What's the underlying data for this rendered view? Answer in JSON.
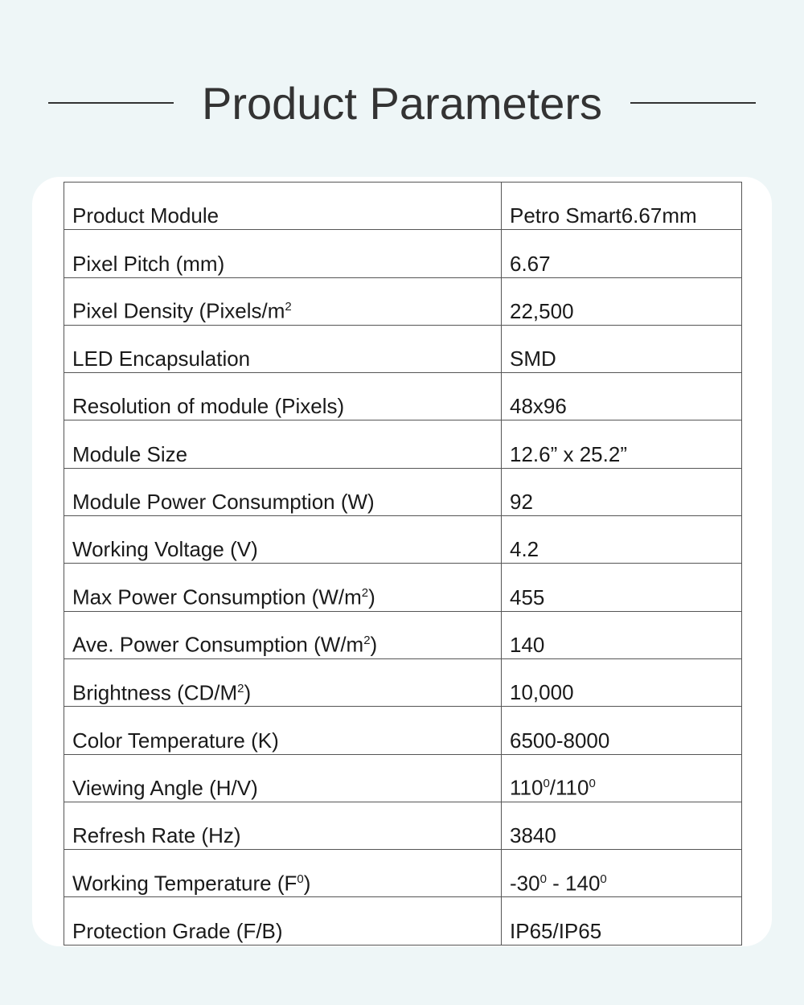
{
  "title": "Product Parameters",
  "rows": [
    {
      "label": "Product Module",
      "sup": "",
      "label_end": "",
      "value": "Petro Smart6.67mm"
    },
    {
      "label": "Pixel Pitch (mm)",
      "sup": "",
      "label_end": "",
      "value": "6.67"
    },
    {
      "label": "Pixel Density (Pixels/m",
      "sup": "2",
      "label_end": "",
      "value": "22,500"
    },
    {
      "label": "LED Encapsulation",
      "sup": "",
      "label_end": "",
      "value": "SMD"
    },
    {
      "label": "Resolution of module (Pixels)",
      "sup": "",
      "label_end": "",
      "value": "48x96"
    },
    {
      "label": "Module Size",
      "sup": "",
      "label_end": "",
      "value": "12.6” x 25.2”"
    },
    {
      "label": "Module Power Consumption (W)",
      "sup": "",
      "label_end": "",
      "value": "92"
    },
    {
      "label": "Working Voltage (V)",
      "sup": "",
      "label_end": "",
      "value": "4.2"
    },
    {
      "label": "Max Power Consumption (W/m",
      "sup": "2",
      "label_end": ")",
      "value": "455"
    },
    {
      "label": "Ave. Power Consumption (W/m",
      "sup": "2",
      "label_end": ")",
      "value": "140"
    },
    {
      "label": "Brightness (CD/M",
      "sup": "2",
      "label_end": ")",
      "value": "10,000"
    },
    {
      "label": "Color Temperature (K)",
      "sup": "",
      "label_end": "",
      "value": "6500-8000"
    },
    {
      "label": "Viewing Angle (H/V)",
      "sup": "",
      "label_end": "",
      "value_html": [
        "110",
        "0",
        "/110",
        "0"
      ]
    },
    {
      "label": "Refresh Rate (Hz)",
      "sup": "",
      "label_end": "",
      "value": "3840"
    },
    {
      "label": "Working Temperature (F",
      "sup": "0",
      "label_end": ")",
      "value_html": [
        "-30",
        "0",
        " - 140",
        "0"
      ]
    },
    {
      "label": "Protection Grade (F/B)",
      "sup": "",
      "label_end": "",
      "value": "IP65/IP65"
    }
  ]
}
